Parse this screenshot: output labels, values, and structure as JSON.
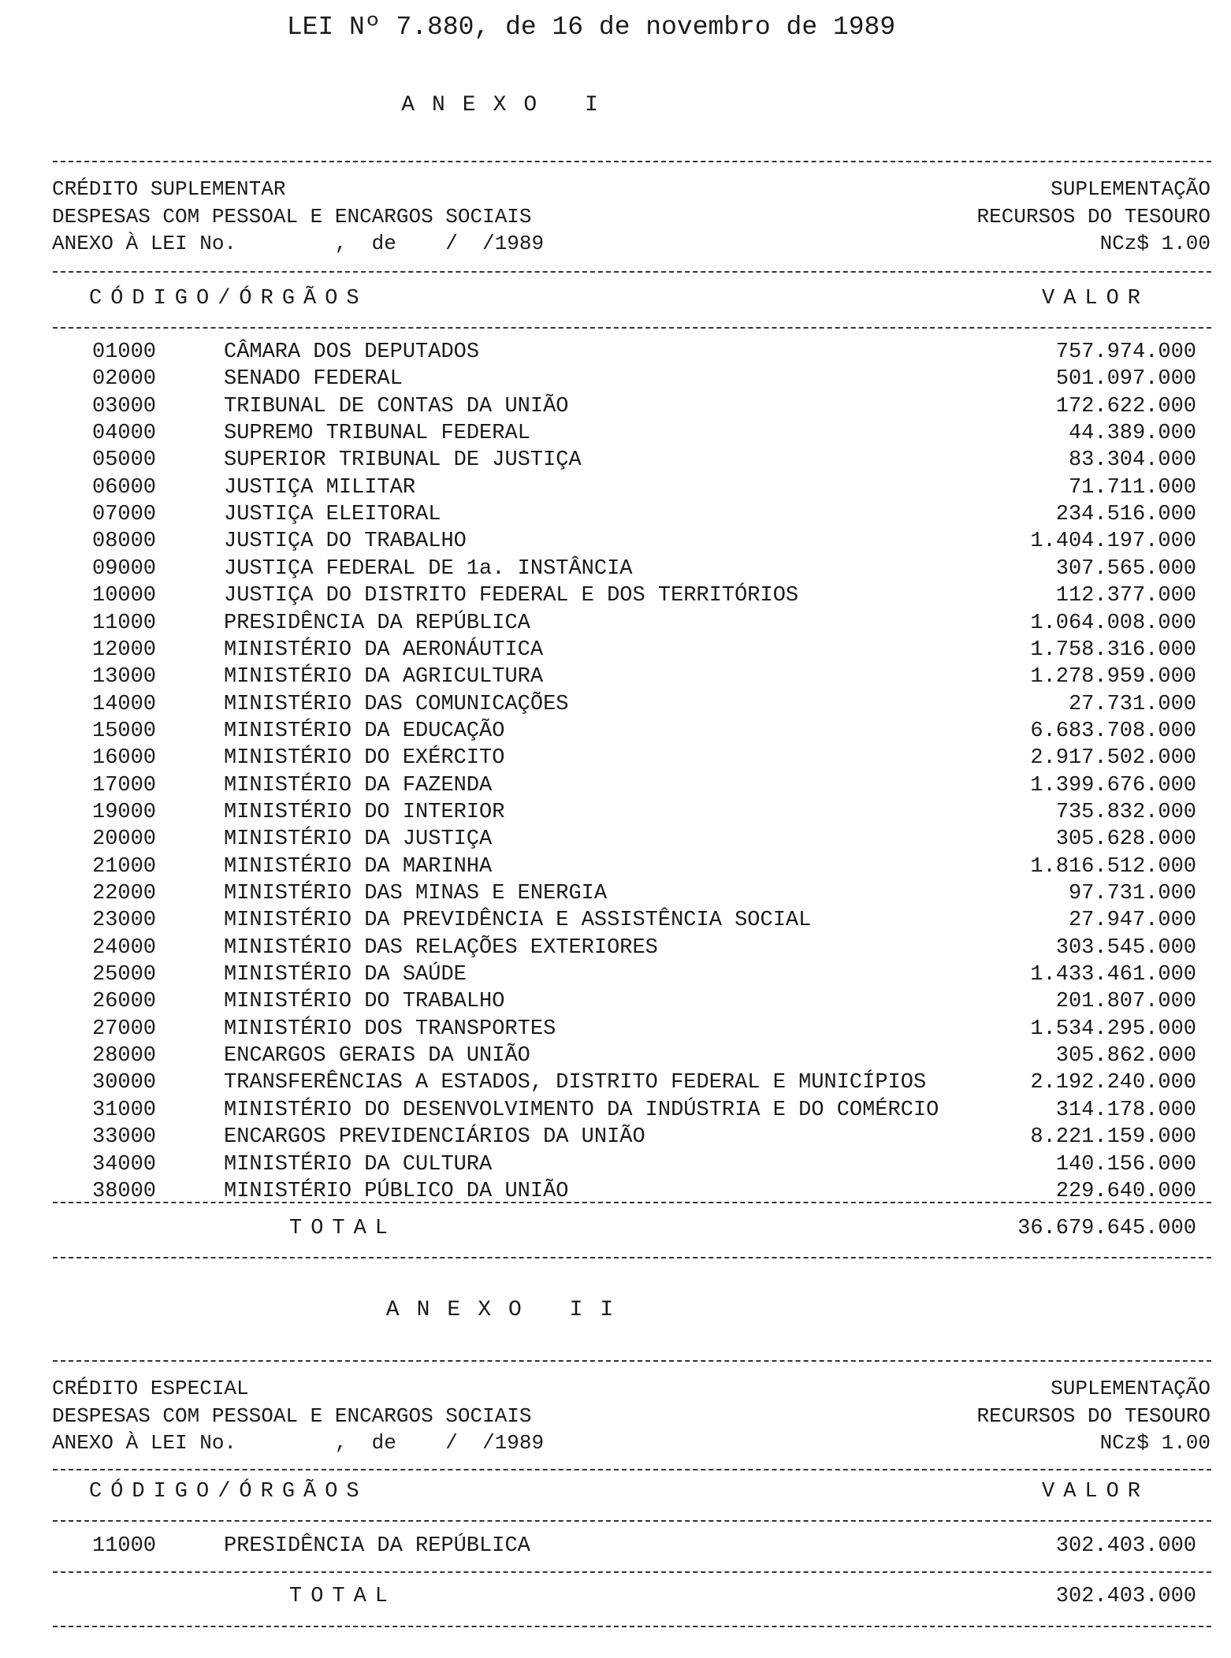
{
  "title": "LEI Nº 7.880, de 16 de novembro de 1989",
  "anexo1": {
    "heading": "ANEXO I",
    "left": [
      "CRÉDITO SUPLEMENTAR",
      "DESPESAS COM PESSOAL E ENCARGOS SOCIAIS",
      "ANEXO À LEI No.        ,  de    /  /1989"
    ],
    "right": [
      "SUPLEMENTAÇÃO",
      "RECURSOS DO TESOURO",
      "NCz$ 1.00"
    ],
    "col_code": "CÓDIGO/ÓRGÃOS",
    "col_value": "VALOR",
    "rows": [
      {
        "code": "01000",
        "name": "CÂMARA DOS DEPUTADOS",
        "value": "757.974.000"
      },
      {
        "code": "02000",
        "name": "SENADO FEDERAL",
        "value": "501.097.000"
      },
      {
        "code": "03000",
        "name": "TRIBUNAL DE CONTAS DA UNIÃO",
        "value": "172.622.000"
      },
      {
        "code": "04000",
        "name": "SUPREMO TRIBUNAL FEDERAL",
        "value": "44.389.000"
      },
      {
        "code": "05000",
        "name": "SUPERIOR TRIBUNAL DE JUSTIÇA",
        "value": "83.304.000"
      },
      {
        "code": "06000",
        "name": "JUSTIÇA MILITAR",
        "value": "71.711.000"
      },
      {
        "code": "07000",
        "name": "JUSTIÇA ELEITORAL",
        "value": "234.516.000"
      },
      {
        "code": "08000",
        "name": "JUSTIÇA DO TRABALHO",
        "value": "1.404.197.000"
      },
      {
        "code": "09000",
        "name": "JUSTIÇA FEDERAL DE 1a. INSTÂNCIA",
        "value": "307.565.000"
      },
      {
        "code": "10000",
        "name": "JUSTIÇA DO DISTRITO FEDERAL E DOS TERRITÓRIOS",
        "value": "112.377.000"
      },
      {
        "code": "11000",
        "name": "PRESIDÊNCIA DA REPÚBLICA",
        "value": "1.064.008.000"
      },
      {
        "code": "12000",
        "name": "MINISTÉRIO DA AERONÁUTICA",
        "value": "1.758.316.000"
      },
      {
        "code": "13000",
        "name": "MINISTÉRIO DA AGRICULTURA",
        "value": "1.278.959.000"
      },
      {
        "code": "14000",
        "name": "MINISTÉRIO DAS COMUNICAÇÕES",
        "value": "27.731.000"
      },
      {
        "code": "15000",
        "name": "MINISTÉRIO DA EDUCAÇÃO",
        "value": "6.683.708.000"
      },
      {
        "code": "16000",
        "name": "MINISTÉRIO DO EXÉRCITO",
        "value": "2.917.502.000"
      },
      {
        "code": "17000",
        "name": "MINISTÉRIO DA FAZENDA",
        "value": "1.399.676.000"
      },
      {
        "code": "19000",
        "name": "MINISTÉRIO DO INTERIOR",
        "value": "735.832.000"
      },
      {
        "code": "20000",
        "name": "MINISTÉRIO DA JUSTIÇA",
        "value": "305.628.000"
      },
      {
        "code": "21000",
        "name": "MINISTÉRIO DA MARINHA",
        "value": "1.816.512.000"
      },
      {
        "code": "22000",
        "name": "MINISTÉRIO DAS MINAS E ENERGIA",
        "value": "97.731.000"
      },
      {
        "code": "23000",
        "name": "MINISTÉRIO DA PREVIDÊNCIA E ASSISTÊNCIA SOCIAL",
        "value": "27.947.000"
      },
      {
        "code": "24000",
        "name": "MINISTÉRIO DAS RELAÇÕES EXTERIORES",
        "value": "303.545.000"
      },
      {
        "code": "25000",
        "name": "MINISTÉRIO DA SAÚDE",
        "value": "1.433.461.000"
      },
      {
        "code": "26000",
        "name": "MINISTÉRIO DO TRABALHO",
        "value": "201.807.000"
      },
      {
        "code": "27000",
        "name": "MINISTÉRIO DOS TRANSPORTES",
        "value": "1.534.295.000"
      },
      {
        "code": "28000",
        "name": "ENCARGOS GERAIS DA UNIÃO",
        "value": "305.862.000"
      },
      {
        "code": "30000",
        "name": "TRANSFERÊNCIAS A ESTADOS, DISTRITO FEDERAL E MUNICÍPIOS",
        "value": "2.192.240.000"
      },
      {
        "code": "31000",
        "name": "MINISTÉRIO DO DESENVOLVIMENTO DA INDÚSTRIA E DO COMÉRCIO",
        "value": "314.178.000"
      },
      {
        "code": "33000",
        "name": "ENCARGOS PREVIDENCIÁRIOS DA UNIÃO",
        "value": "8.221.159.000"
      },
      {
        "code": "34000",
        "name": "MINISTÉRIO DA CULTURA",
        "value": "140.156.000"
      },
      {
        "code": "38000",
        "name": "MINISTÉRIO PÚBLICO DA UNIÃO",
        "value": "229.640.000"
      }
    ],
    "total_label": "TOTAL",
    "total_value": "36.679.645.000"
  },
  "anexo2": {
    "heading": "ANEXO II",
    "left": [
      "CRÉDITO ESPECIAL",
      "DESPESAS COM PESSOAL E ENCARGOS SOCIAIS",
      "ANEXO À LEI No.        ,  de    /  /1989"
    ],
    "right": [
      "SUPLEMENTAÇÃO",
      "RECURSOS DO TESOURO",
      "NCz$ 1.00"
    ],
    "col_code": "CÓDIGO/ÓRGÃOS",
    "col_value": "VALOR",
    "rows": [
      {
        "code": "11000",
        "name": "PRESIDÊNCIA DA REPÚBLICA",
        "value": "302.403.000"
      }
    ],
    "total_label": "TOTAL",
    "total_value": "302.403.000"
  }
}
